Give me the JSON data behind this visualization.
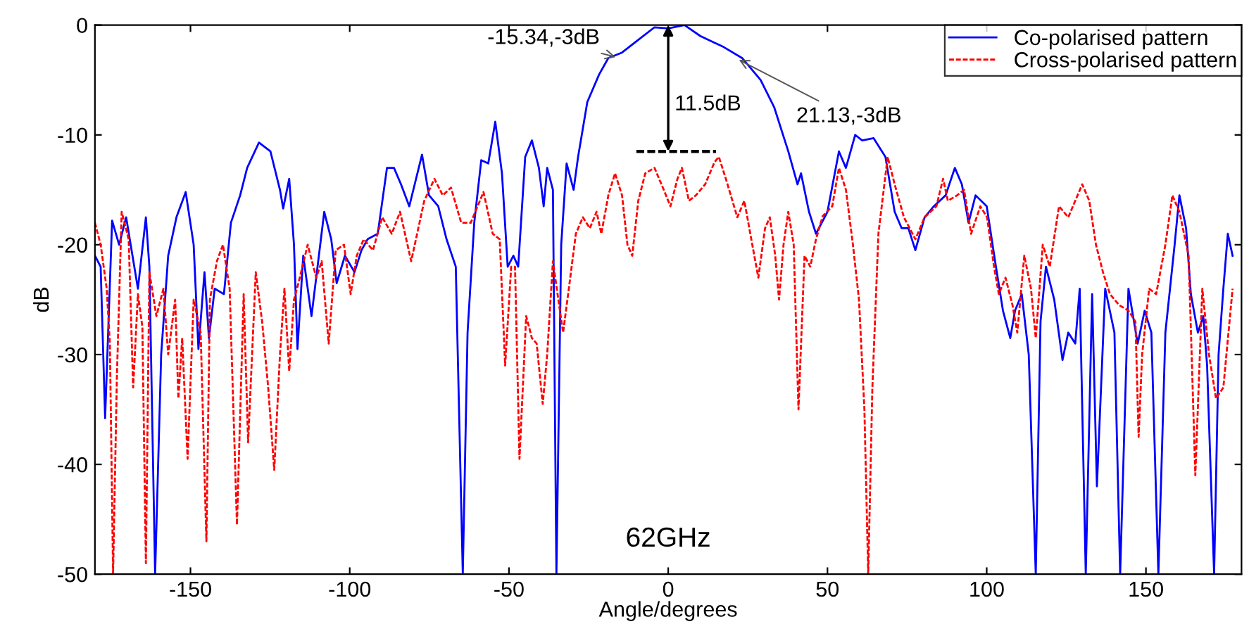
{
  "chart_data": {
    "type": "line",
    "xlabel": "Angle/degrees",
    "ylabel": "dB",
    "xlim": [
      -180,
      180
    ],
    "ylim": [
      -50,
      0
    ],
    "xticks": [
      -150,
      -100,
      -50,
      0,
      50,
      100,
      150
    ],
    "yticks": [
      -50,
      -40,
      -30,
      -20,
      -10,
      0
    ],
    "grid": false,
    "legend": "top right",
    "marker": "none",
    "series": [
      {
        "name": "Co-polarised pattern",
        "color": "#0000ff",
        "line_style": "solid",
        "x": [
          -180,
          -178.2,
          -176.8,
          -174.6,
          -172.4,
          -170.2,
          -166.5,
          -164,
          -162.9,
          -161.1,
          -159.2,
          -157,
          -154.4,
          -151.5,
          -149,
          -147.5,
          -145.6,
          -144.2,
          -142.4,
          -139.5,
          -137.3,
          -134.4,
          -132.2,
          -128.5,
          -124.9,
          -121.9,
          -120.9,
          -119,
          -117.5,
          -116.4,
          -114.6,
          -112,
          -108,
          -105.8,
          -104.1,
          -101.5,
          -98.5,
          -96.3,
          -94.4,
          -91.2,
          -88.3,
          -86.1,
          -83.9,
          -81.3,
          -77.3,
          -75.1,
          -72.2,
          -69.6,
          -66.7,
          -64.5,
          -63,
          -60.9,
          -58.7,
          -56.5,
          -54.3,
          -52.2,
          -50.4,
          -48.6,
          -47.1,
          -44.9,
          -42.8,
          -40.6,
          -39.1,
          -38,
          -36.2,
          -35.1,
          -33.6,
          -31.9,
          -29.7,
          -28.3,
          -25.4,
          -21.7,
          -18.8,
          -14.5,
          -10.1,
          -4.3,
          0,
          5.1,
          10.1,
          17.4,
          23.2,
          29,
          33.3,
          37.7,
          40.6,
          41.7,
          44.2,
          46.4,
          50,
          53.6,
          55.8,
          58.7,
          60.9,
          64.5,
          68.2,
          71.1,
          73.3,
          75.4,
          77.6,
          80.5,
          83.4,
          87.1,
          90,
          92.2,
          94.3,
          96.5,
          100,
          102.9,
          105.1,
          107.4,
          108.9,
          111,
          113.2,
          115.4,
          116.9,
          118.6,
          121.2,
          123.8,
          125.6,
          127.8,
          129.2,
          131.1,
          133.1,
          134.6,
          137.2,
          140.1,
          141.9,
          144.5,
          147.4,
          149.6,
          151.7,
          153.9,
          156.1,
          159,
          160.5,
          162.6,
          164.1,
          166.3,
          168,
          169.2,
          171.4,
          172.8,
          174.3,
          175.7,
          177.2
        ],
        "values": [
          -21,
          -22,
          -35.8,
          -17.8,
          -20,
          -17.5,
          -24,
          -17.5,
          -22,
          -50,
          -30,
          -21,
          -17.5,
          -15.2,
          -20,
          -29.5,
          -22.5,
          -28.5,
          -24,
          -24.5,
          -18,
          -15.5,
          -13,
          -10.7,
          -11.5,
          -15,
          -16.7,
          -14,
          -20,
          -29.5,
          -21,
          -26.5,
          -17,
          -19.5,
          -23.5,
          -21,
          -22.5,
          -20.5,
          -19.5,
          -19,
          -13,
          -13,
          -14.5,
          -16.5,
          -11.8,
          -15.5,
          -16.5,
          -19.5,
          -22,
          -50,
          -28,
          -18,
          -12.3,
          -12.6,
          -8.8,
          -13.5,
          -22,
          -21,
          -22,
          -12,
          -10.5,
          -13,
          -16.5,
          -13,
          -15,
          -50,
          -20,
          -12.6,
          -15,
          -12,
          -7,
          -4.5,
          -3,
          -2.5,
          -1.5,
          -0.2,
          -0.3,
          0,
          -1,
          -2,
          -3,
          -5,
          -7.5,
          -11.5,
          -14.5,
          -13.5,
          -17,
          -19,
          -17,
          -11.5,
          -13,
          -10,
          -10.5,
          -10.3,
          -12,
          -17,
          -18.5,
          -18.5,
          -20.5,
          -17.5,
          -16.5,
          -15.5,
          -13,
          -14.5,
          -18,
          -15.5,
          -16.5,
          -22,
          -26,
          -28.5,
          -26,
          -24.5,
          -30,
          -50,
          -27,
          -22,
          -25,
          -30.5,
          -28,
          -29,
          -24,
          -50,
          -24.5,
          -42,
          -24,
          -28,
          -50,
          -24,
          -29,
          -26,
          -28,
          -50,
          -28,
          -20,
          -15.5,
          -18.5,
          -24.5,
          -28,
          -26.5,
          -31,
          -50,
          -30,
          -24,
          -19,
          -21
        ]
      },
      {
        "name": "Cross-polarised pattern",
        "color": "#ff0000",
        "line_style": "dashed",
        "x": [
          -180,
          -178.2,
          -176.3,
          -175.3,
          -174.3,
          -173.1,
          -171.6,
          -169.4,
          -168,
          -166.5,
          -165.1,
          -164,
          -162.9,
          -160.7,
          -158.5,
          -157,
          -154.8,
          -153.8,
          -152.6,
          -150.9,
          -149,
          -146.8,
          -145,
          -143.9,
          -141.7,
          -139.8,
          -137.7,
          -135.4,
          -133.3,
          -131.9,
          -129.5,
          -127.5,
          -125.6,
          -123.7,
          -121.9,
          -120.5,
          -119,
          -117.5,
          -116.1,
          -113.2,
          -110.5,
          -108.8,
          -106.6,
          -104.4,
          -101.8,
          -99.7,
          -97.8,
          -95.6,
          -92.7,
          -89.8,
          -86.8,
          -84.2,
          -80.7,
          -76.6,
          -73.4,
          -70.8,
          -68.2,
          -65,
          -62,
          -58,
          -55.1,
          -52.9,
          -51.2,
          -49.3,
          -48.1,
          -46.7,
          -44.6,
          -42.8,
          -41.3,
          -39.4,
          -38,
          -36.2,
          -34.5,
          -33,
          -31.2,
          -29,
          -26.8,
          -24.6,
          -22.5,
          -21,
          -18.8,
          -16.7,
          -14.5,
          -12.8,
          -11.3,
          -9.4,
          -7.2,
          -4.3,
          -1.4,
          0.7,
          2.9,
          4.3,
          6.5,
          8.7,
          11.6,
          14.5,
          15.9,
          18.1,
          21.7,
          23.9,
          26.4,
          28.3,
          30.4,
          31.9,
          33.6,
          34.8,
          36.2,
          37.7,
          39.4,
          40.9,
          42.8,
          44.6,
          46.4,
          48.5,
          51.5,
          53.6,
          55.8,
          58,
          59.9,
          61.6,
          62.8,
          64.1,
          66,
          68.9,
          71.1,
          74,
          77.6,
          80.5,
          84.2,
          86.3,
          87.8,
          90.7,
          92.9,
          95.1,
          98,
          100.1,
          102.3,
          103.8,
          105.9,
          108.1,
          109.6,
          111.8,
          113.9,
          115.4,
          117.6,
          119.8,
          122.7,
          125.6,
          130,
          132.2,
          134.3,
          136.5,
          138.7,
          141.6,
          144.5,
          146.7,
          147.7,
          148.8,
          151,
          153.2,
          156.1,
          158.3,
          160.5,
          163.4,
          165.5,
          167.7,
          169.8,
          172,
          174.3,
          177.2
        ],
        "values": [
          -18,
          -20,
          -24,
          -29,
          -50,
          -32,
          -17,
          -19.5,
          -33,
          -24.5,
          -27.5,
          -49,
          -22.5,
          -26.5,
          -24,
          -30,
          -25,
          -34,
          -28.5,
          -39.5,
          -25,
          -28,
          -47,
          -25,
          -21.5,
          -20,
          -24,
          -45.5,
          -24.5,
          -38,
          -22.5,
          -27,
          -33,
          -40.5,
          -30,
          -24,
          -31.5,
          -25,
          -23.5,
          -20,
          -23,
          -21.5,
          -29,
          -20.5,
          -20,
          -24.5,
          -21,
          -19.5,
          -20.5,
          -17.5,
          -19,
          -17,
          -21.5,
          -16,
          -14,
          -15.5,
          -14.8,
          -18,
          -18,
          -15.2,
          -19,
          -19.5,
          -31,
          -22,
          -22,
          -39.5,
          -26.5,
          -28.5,
          -29,
          -34.5,
          -30,
          -21.5,
          -25,
          -28,
          -24,
          -19,
          -17.5,
          -18.5,
          -17,
          -19,
          -15.5,
          -13.5,
          -15.5,
          -20,
          -21,
          -16,
          -13.5,
          -13,
          -15,
          -16.5,
          -14,
          -13,
          -16,
          -15.5,
          -14.5,
          -12.5,
          -12,
          -14,
          -17.5,
          -16,
          -20,
          -23,
          -18.5,
          -17.5,
          -21,
          -25,
          -20,
          -17,
          -20,
          -35,
          -21,
          -22,
          -19.5,
          -17.4,
          -16.5,
          -13,
          -15,
          -20,
          -25,
          -35,
          -50,
          -33,
          -19,
          -12,
          -14.5,
          -17.5,
          -19.5,
          -17.5,
          -16.5,
          -14,
          -16,
          -15.5,
          -15,
          -19,
          -16.5,
          -17.5,
          -22,
          -24.5,
          -23,
          -25.5,
          -28,
          -21,
          -24,
          -28.5,
          -20,
          -22,
          -16.5,
          -17.5,
          -14.5,
          -16,
          -20,
          -22.5,
          -24.5,
          -25.5,
          -26,
          -27,
          -37.5,
          -30,
          -24,
          -24.5,
          -20,
          -15.5,
          -17,
          -21,
          -41,
          -24,
          -30,
          -34,
          -33,
          -24
        ]
      },
      {
        "color": "#000000",
        "line_style": "dashed",
        "x": [
          -10,
          15
        ],
        "values": [
          -11.5,
          -11.5
        ]
      }
    ],
    "annotations": [
      {
        "text": "-15.34,-3dB",
        "x": -15.34,
        "y": -3
      },
      {
        "text": "21.13,-3dB",
        "x": 21.13,
        "y": -3
      },
      {
        "text": "11.5dB",
        "x": 0,
        "y": -11.5
      },
      "62GHz"
    ]
  }
}
